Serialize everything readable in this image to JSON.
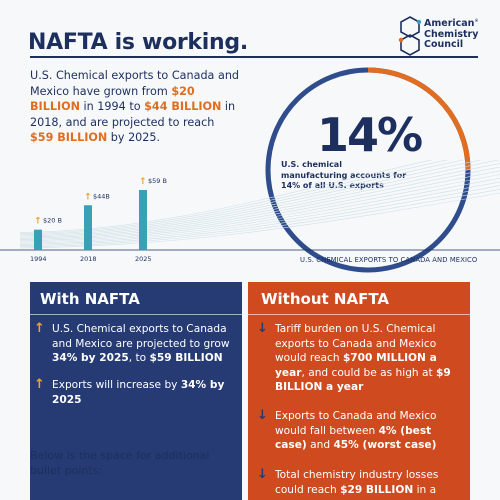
{
  "title": "NAFTA is working.",
  "logo": {
    "line1": "American",
    "line2": "Chemistry",
    "line3": "Council",
    "mark": "®"
  },
  "intro": {
    "p1": "U.S. Chemical exports to Canada and Mexico have grown from ",
    "v1": "$20 BILLION",
    "p2": " in 1994 to ",
    "v2": "$44 BILLION",
    "p3": " in 2018, and are projected to reach ",
    "v3": "$59 BILLION",
    "p4": " by 2025."
  },
  "highlight": {
    "value": "14%",
    "caption": "U.S. chemical manufacturing accounts for 14% of all U.S. exports"
  },
  "chart_data": {
    "type": "bar",
    "categories": [
      "1994",
      "2018",
      "2025"
    ],
    "values": [
      20,
      44,
      59
    ],
    "data_labels": [
      "$20 B",
      "$44B",
      "$59 B"
    ],
    "xlabel": "U.S. CHEMICAL EXPORTS TO CANADA AND MEXICO",
    "bar_color": "#3aa0b5",
    "arrow_color": "#f0a030"
  },
  "with_nafta": {
    "title": "With NAFTA",
    "b1": {
      "p1": "U.S. Chemical exports to Canada and Mexico are projected to grow ",
      "v1": "34% by 2025",
      "p2": ", to ",
      "v2": "$59 BILLION"
    },
    "b2": {
      "p1": "Exports will increase by ",
      "v1": "34% by 2025"
    }
  },
  "without_nafta": {
    "title": "Without NAFTA",
    "b1": {
      "p1": "Tariff burden on U.S. Chemical exports to Canada and Mexico would reach ",
      "v1": "$700 MILLION a year",
      "p2": ", and could be as high at ",
      "v2": "$9 BILLION a year"
    },
    "b2": {
      "p1": "Exports to Canada and Mexico would fall between ",
      "v1": "4% (best case)",
      "p2": " and ",
      "v2": "45% (worst case)"
    },
    "b3": {
      "p1": "Total chemistry industry losses could reach ",
      "v1": "$29 BILLION",
      "p2": " in a"
    }
  },
  "bottom_note": "Below is the space for additional bullet points:",
  "colors": {
    "navy": "#1d2f5e",
    "orange": "#e06d20",
    "teal": "#3aa0b5",
    "red_panel": "#cf4a1f",
    "blue_panel": "#263b74"
  }
}
